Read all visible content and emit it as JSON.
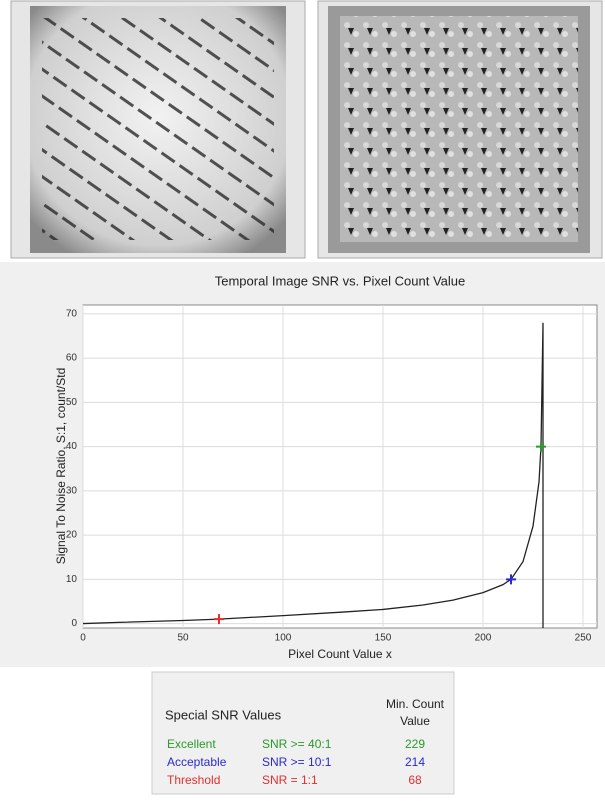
{
  "chart_data": {
    "type": "line",
    "title": "Temporal Image SNR vs. Pixel Count Value",
    "x_label": "Pixel Count Value x",
    "y_label": "Signal To Noise Ratio, S:1, count/Std",
    "x": [
      0,
      20,
      50,
      68,
      100,
      130,
      150,
      170,
      185,
      200,
      210,
      214,
      220,
      225,
      228,
      229,
      230,
      230
    ],
    "series": [
      {
        "color": "#222222",
        "values": [
          0,
          0.3,
          0.7,
          1,
          1.8,
          2.6,
          3.2,
          4.2,
          5.3,
          7,
          8.8,
          10,
          14,
          22,
          32,
          40,
          68,
          -1
        ]
      }
    ],
    "markers": [
      {
        "x": 68,
        "y": 1,
        "color": "#e03030"
      },
      {
        "x": 214,
        "y": 10,
        "color": "#2a2ad0"
      },
      {
        "x": 229,
        "y": 40,
        "color": "#2a9a2a"
      }
    ],
    "xlim": [
      0,
      257
    ],
    "ylim": [
      -1,
      72
    ],
    "xticks": [
      0,
      50,
      100,
      150,
      200,
      250
    ],
    "yticks": [
      0,
      10,
      20,
      30,
      40,
      50,
      60,
      70
    ],
    "grid": true
  },
  "table": {
    "title": "Special SNR Values",
    "header": [
      "Min. Count",
      "Value"
    ],
    "rows": [
      {
        "color": "#2a9a2a",
        "cells": [
          "Excellent",
          "SNR >= 40:1",
          "229"
        ]
      },
      {
        "color": "#2a2ad0",
        "cells": [
          "Acceptable",
          "SNR >= 10:1",
          "214"
        ]
      },
      {
        "color": "#e03030",
        "cells": [
          "Threshold",
          "SNR  = 1:1",
          "68"
        ]
      }
    ]
  }
}
